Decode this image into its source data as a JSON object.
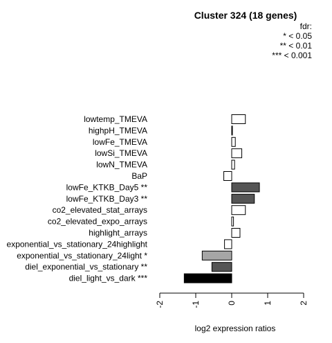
{
  "chart_data": {
    "type": "bar",
    "orientation": "horizontal",
    "title": "Cluster 324 (18 genes)",
    "xlabel": "log2 expression ratios",
    "ylabel": "",
    "xlim": [
      -2,
      2
    ],
    "x_ticks": [
      "-2",
      "-1",
      "0",
      "1",
      "2"
    ],
    "legend": {
      "title": "fdr:",
      "entries": [
        "* < 0.05",
        "** < 0.01",
        "*** < 0.001"
      ],
      "placement": "top-right"
    },
    "categories": [
      "lowtemp_TMEVA",
      "highpH_TMEVA",
      "lowFe_TMEVA",
      "lowSi_TMEVA",
      "lowN_TMEVA",
      "BaP",
      "lowFe_KTKB_Day5 **",
      "lowFe_KTKB_Day3 **",
      "co2_elevated_stat_arrays",
      "co2_elevated_expo_arrays",
      "highlight_arrays",
      "exponential_vs_stationary_24highlight",
      "exponential_vs_stationary_24light *",
      "diel_exponential_vs_stationary **",
      "diel_light_vs_dark ***"
    ],
    "values": [
      0.38,
      0.02,
      0.1,
      0.28,
      0.08,
      -0.22,
      0.77,
      0.63,
      0.38,
      0.05,
      0.23,
      -0.2,
      -0.82,
      -0.55,
      -1.32
    ],
    "colors": [
      "#ffffff",
      "#ffffff",
      "#ffffff",
      "#ffffff",
      "#ffffff",
      "#ffffff",
      "#555555",
      "#555555",
      "#ffffff",
      "#ffffff",
      "#ffffff",
      "#ffffff",
      "#a6a6a6",
      "#555555",
      "#000000"
    ]
  }
}
